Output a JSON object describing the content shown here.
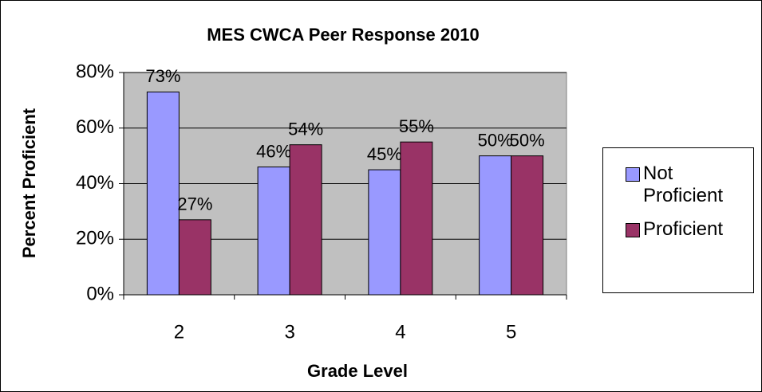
{
  "chart_data": {
    "type": "bar",
    "title": "MES CWCA Peer Response 2010",
    "x_label": "Grade Level",
    "y_label": "Percent Proficient",
    "categories": [
      "2",
      "3",
      "4",
      "5"
    ],
    "series": [
      {
        "name": "Not Proficient",
        "color": "#9999ff",
        "values": [
          73,
          46,
          45,
          50
        ],
        "value_labels": [
          "73%",
          "46%",
          "45%",
          "50%"
        ]
      },
      {
        "name": "Proficient",
        "color": "#993366",
        "values": [
          27,
          54,
          55,
          50
        ],
        "value_labels": [
          "27%",
          "54%",
          "55%",
          "50%"
        ]
      }
    ],
    "ylim": [
      0,
      80
    ],
    "yticks": [
      {
        "value": 0,
        "label": "0%"
      },
      {
        "value": 20,
        "label": "20%"
      },
      {
        "value": 40,
        "label": "40%"
      },
      {
        "value": 60,
        "label": "60%"
      },
      {
        "value": 80,
        "label": "80%"
      }
    ],
    "grid": true,
    "legend": "right",
    "plot_background": "#c0c0c0"
  }
}
